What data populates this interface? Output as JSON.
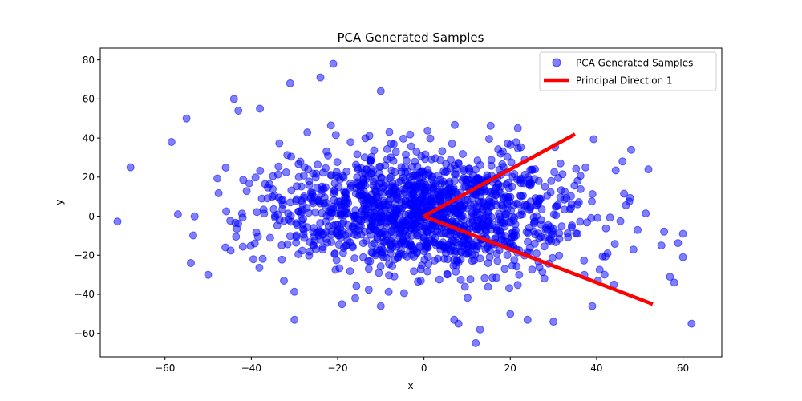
{
  "chart_data": {
    "type": "scatter",
    "title": "PCA Generated Samples",
    "xlabel": "x",
    "ylabel": "y",
    "xlim": [
      -75,
      69
    ],
    "ylim": [
      -72,
      86
    ],
    "xticks": [
      -60,
      -40,
      -20,
      0,
      20,
      40,
      60
    ],
    "yticks": [
      -60,
      -40,
      -20,
      0,
      20,
      40,
      60,
      80
    ],
    "grid": false,
    "legend_position": "top-right",
    "colors": {
      "points": "#0000ff",
      "direction": "#ff0000"
    },
    "series": [
      {
        "name": "PCA Generated Samples",
        "type": "scatter",
        "sample_count": 1500,
        "outliers": [
          [
            -68,
            25
          ],
          [
            -58.5,
            38
          ],
          [
            -57,
            1
          ],
          [
            -55,
            50
          ],
          [
            -54,
            -24
          ],
          [
            -50,
            -30
          ],
          [
            -46,
            -16
          ],
          [
            -44,
            60
          ],
          [
            -43,
            54
          ],
          [
            -38,
            55
          ],
          [
            -31,
            68
          ],
          [
            -30,
            -53
          ],
          [
            -24,
            71
          ],
          [
            -21,
            78
          ],
          [
            -19,
            -45
          ],
          [
            -10,
            64
          ],
          [
            -10,
            -46
          ],
          [
            7,
            -53
          ],
          [
            8,
            -55
          ],
          [
            12,
            -65
          ],
          [
            13,
            -58
          ],
          [
            20,
            -50
          ],
          [
            24,
            -53
          ],
          [
            30,
            -54
          ],
          [
            39,
            -46
          ],
          [
            44,
            -35
          ],
          [
            46,
            28
          ],
          [
            48,
            34
          ],
          [
            52,
            24
          ],
          [
            55,
            -15
          ],
          [
            57,
            -31
          ],
          [
            58,
            -34
          ],
          [
            60,
            -21
          ],
          [
            60,
            -9
          ],
          [
            62,
            -55
          ]
        ]
      },
      {
        "name": "Principal Direction 1",
        "type": "line",
        "segments": [
          [
            [
              0,
              0
            ],
            [
              35,
              42
            ]
          ],
          [
            [
              0,
              0
            ],
            [
              53,
              -45
            ]
          ]
        ]
      }
    ]
  }
}
